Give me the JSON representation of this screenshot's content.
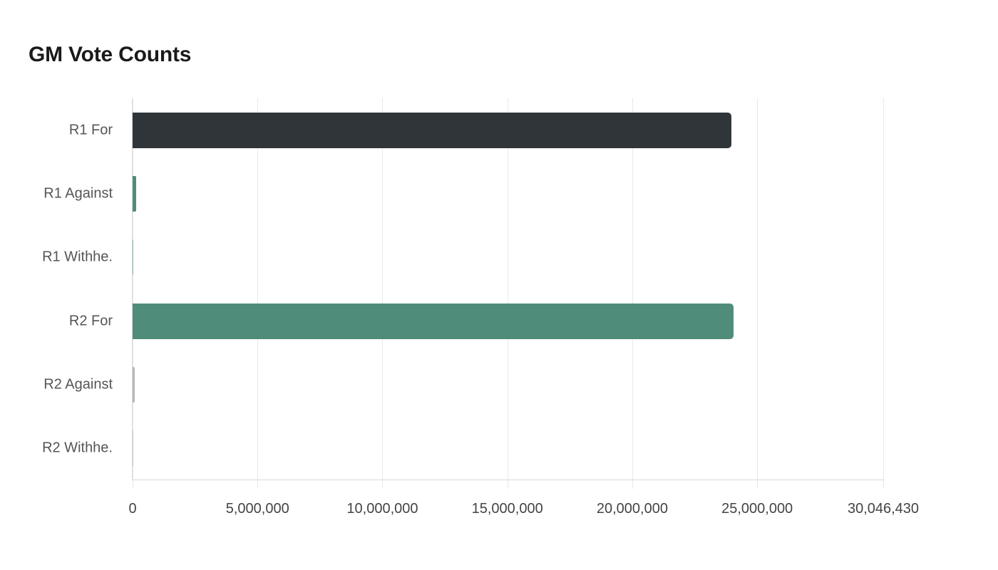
{
  "chart_data": {
    "type": "bar",
    "orientation": "horizontal",
    "title": "GM Vote Counts",
    "xlabel": "",
    "ylabel": "",
    "categories": [
      "R1 For",
      "R1 Against",
      "R1 Withhe.",
      "R2 For",
      "R2 Against",
      "R2 Withhe."
    ],
    "values": [
      23970000,
      140000,
      20000,
      24060000,
      90000,
      20000
    ],
    "colors": [
      "#2f3538",
      "#4f8c7a",
      "#8fbcae",
      "#4f8c7a",
      "#b8b8b8",
      "#c8c8c8"
    ],
    "xlim": [
      0,
      30046430
    ],
    "x_ticks": [
      0,
      5000000,
      10000000,
      15000000,
      20000000,
      25000000,
      30046430
    ],
    "x_tick_labels": [
      "0",
      "5,000,000",
      "10,000,000",
      "15,000,000",
      "20,000,000",
      "25,000,000",
      "30,046,430"
    ],
    "grid": true,
    "legend": "none"
  },
  "header": {
    "title": "GM Vote Counts"
  }
}
